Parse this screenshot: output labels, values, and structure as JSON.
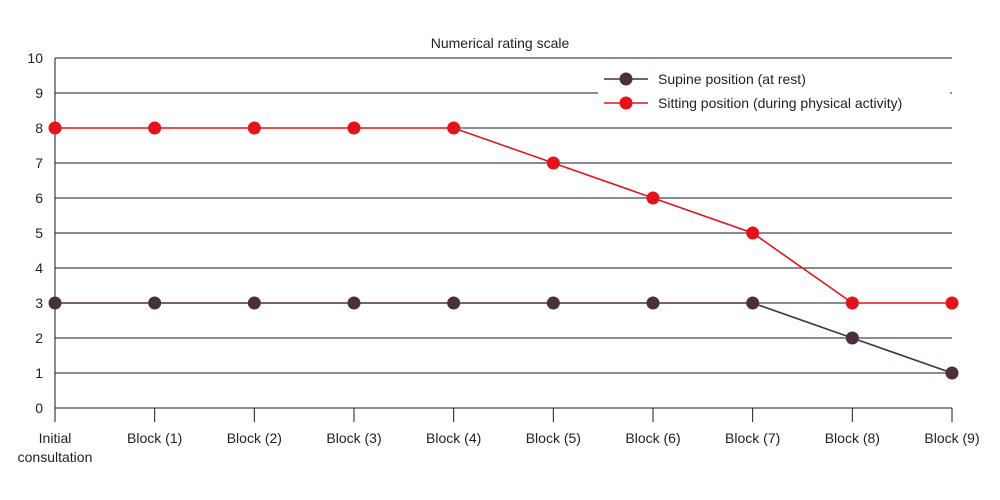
{
  "chart_data": {
    "type": "line",
    "title": "Numerical rating scale",
    "xlabel": "",
    "ylabel": "",
    "categories": [
      [
        "Initial",
        "consultation"
      ],
      [
        "Block (1)"
      ],
      [
        "Block (2)"
      ],
      [
        "Block (3)"
      ],
      [
        "Block (4)"
      ],
      [
        "Block (5)"
      ],
      [
        "Block (6)"
      ],
      [
        "Block (7)"
      ],
      [
        "Block (8)"
      ],
      [
        "Block (9)"
      ]
    ],
    "ylim": [
      0,
      10
    ],
    "yticks": [
      "0",
      "1",
      "2",
      "3",
      "4",
      "5",
      "6",
      "7",
      "8",
      "9",
      "10"
    ],
    "grid": true,
    "legend_position": "top-right",
    "series": [
      {
        "name": "Supine position (at rest)",
        "color": "#4a2f3f",
        "values": [
          3,
          3,
          3,
          3,
          3,
          3,
          3,
          3,
          2,
          1
        ]
      },
      {
        "name": "Sitting position (during physical activity)",
        "color": "#e3131b",
        "values": [
          8,
          8,
          8,
          8,
          8,
          7,
          6,
          5,
          3,
          3
        ]
      }
    ]
  }
}
